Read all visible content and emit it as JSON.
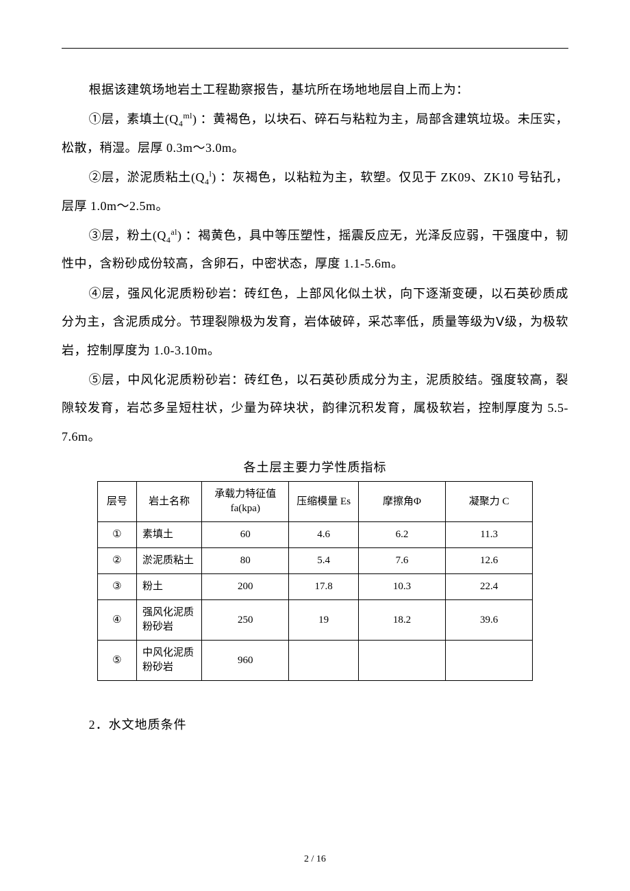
{
  "intro": "根据该建筑场地岩土工程勘察报告，基坑所在场地地层自上而上为：",
  "layers_text": {
    "l1a": "①层，素填土(Q",
    "l1_sub": "4",
    "l1_sup": "ml",
    "l1b": ") ：黄褐色，以块石、碎石与粘粒为主，局部含建筑垃圾。未压实，松散，稍湿。层厚 0.3m～3.0m。",
    "l2a": "②层，淤泥质粘土(Q",
    "l2_sub": "4",
    "l2_sup": "l",
    "l2b": ") ：灰褐色，以粘粒为主，软塑。仅见于 ZK09、ZK10 号钻孔，层厚 1.0m～2.5m。",
    "l3a": "③层，粉土(Q",
    "l3_sub": "4",
    "l3_sup": "al",
    "l3b": ") ：褐黄色，具中等压塑性，摇震反应无，光泽反应弱，干强度中，韧性中，含粉砂成份较高，含卵石，中密状态，厚度 1.1-5.6m。",
    "l4": "④层，强风化泥质粉砂岩：砖红色，上部风化似土状，向下逐渐变硬，以石英砂质成分为主，含泥质成分。节理裂隙极为发育，岩体破碎，采芯率低，质量等级为Ⅴ级，为极软岩，控制厚度为 1.0-3.10m。",
    "l5": "⑤层，中风化泥质粉砂岩：砖红色，以石英砂质成分为主，泥质胶结。强度较高，裂隙较发育，岩芯多呈短柱状，少量为碎块状，韵律沉积发育，属极软岩，控制厚度为 5.5-7.6m。"
  },
  "table": {
    "title": "各土层主要力学性质指标",
    "columns": [
      "层号",
      "岩土名称",
      "承载力特征值\nfa(kpa)",
      "压缩模量\nEs",
      "摩擦角Φ",
      "凝聚力 C"
    ],
    "rows": [
      [
        "①",
        "素填土",
        "60",
        "4.6",
        "6.2",
        "11.3"
      ],
      [
        "②",
        "淤泥质粘土",
        "80",
        "5.4",
        "7.6",
        "12.6"
      ],
      [
        "③",
        "粉土",
        "200",
        "17.8",
        "10.3",
        "22.4"
      ],
      [
        "④",
        "强风化泥质粉砂岩",
        "250",
        "19",
        "18.2",
        "39.6"
      ],
      [
        "⑤",
        "中风化泥质粉砂岩",
        "960",
        "",
        "",
        ""
      ]
    ]
  },
  "section2": "2．水文地质条件",
  "footer": "2 / 16"
}
